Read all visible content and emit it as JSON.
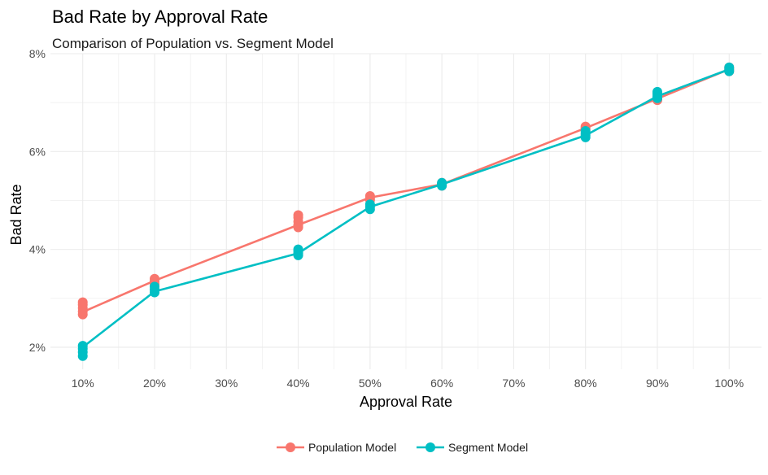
{
  "chart_data": {
    "type": "line",
    "title": "Bad Rate by Approval Rate",
    "subtitle": "Comparison of Population vs. Segment Model",
    "xlabel": "Approval Rate",
    "ylabel": "Bad Rate",
    "x_ticks": [
      "10%",
      "20%",
      "30%",
      "40%",
      "50%",
      "60%",
      "70%",
      "80%",
      "90%",
      "100%"
    ],
    "y_ticks": [
      "2%",
      "4%",
      "6%",
      "8%"
    ],
    "xlim": [
      5.5,
      104.5
    ],
    "ylim": [
      1.55,
      8.0
    ],
    "grid": true,
    "legend_position": "bottom",
    "series": [
      {
        "name": "Population Model",
        "color": "#F8766D",
        "points": [
          {
            "x": 10,
            "y": [
              2.67,
              2.73,
              2.8,
              2.87,
              2.92
            ]
          },
          {
            "x": 20,
            "y": [
              3.29,
              3.35,
              3.4
            ]
          },
          {
            "x": 40,
            "y": [
              4.45,
              4.5,
              4.57,
              4.65,
              4.7
            ]
          },
          {
            "x": 50,
            "y": [
              5.01,
              5.05,
              5.09
            ]
          },
          {
            "x": 60,
            "y": [
              5.3,
              5.33,
              5.36
            ]
          },
          {
            "x": 80,
            "y": [
              6.45,
              6.48,
              6.51
            ]
          },
          {
            "x": 90,
            "y": [
              7.05,
              7.08,
              7.11
            ]
          },
          {
            "x": 100,
            "y": [
              7.64,
              7.68,
              7.72
            ]
          }
        ],
        "line": [
          {
            "x": 10,
            "y": 2.72
          },
          {
            "x": 20,
            "y": 3.36
          },
          {
            "x": 40,
            "y": 4.5
          },
          {
            "x": 50,
            "y": 5.06
          },
          {
            "x": 60,
            "y": 5.33
          },
          {
            "x": 80,
            "y": 6.48
          },
          {
            "x": 90,
            "y": 7.08
          },
          {
            "x": 100,
            "y": 7.68
          }
        ]
      },
      {
        "name": "Segment Model",
        "color": "#00BFC4",
        "points": [
          {
            "x": 10,
            "y": [
              1.82,
              1.9,
              1.97,
              2.03
            ]
          },
          {
            "x": 20,
            "y": [
              3.12,
              3.18,
              3.24
            ]
          },
          {
            "x": 40,
            "y": [
              3.88,
              3.92,
              3.96,
              4.0
            ]
          },
          {
            "x": 50,
            "y": [
              4.82,
              4.87,
              4.92
            ]
          },
          {
            "x": 60,
            "y": [
              5.3,
              5.33,
              5.36
            ]
          },
          {
            "x": 80,
            "y": [
              6.29,
              6.33,
              6.37,
              6.42
            ]
          },
          {
            "x": 90,
            "y": [
              7.09,
              7.13,
              7.18,
              7.22
            ]
          },
          {
            "x": 100,
            "y": [
              7.64,
              7.68,
              7.72
            ]
          }
        ],
        "line": [
          {
            "x": 10,
            "y": 2.0
          },
          {
            "x": 20,
            "y": 3.14
          },
          {
            "x": 40,
            "y": 3.92
          },
          {
            "x": 50,
            "y": 4.87
          },
          {
            "x": 60,
            "y": 5.33
          },
          {
            "x": 80,
            "y": 6.33
          },
          {
            "x": 90,
            "y": 7.13
          },
          {
            "x": 100,
            "y": 7.68
          }
        ]
      }
    ]
  }
}
